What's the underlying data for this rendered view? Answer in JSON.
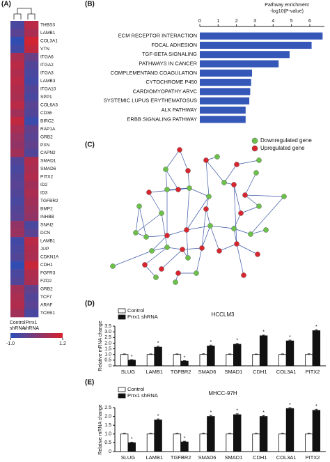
{
  "chart_data": [
    {
      "type": "heatmap",
      "panel": "(A)",
      "rows": [
        "THBS3",
        "LAMB1",
        "COL3A1",
        "VTN",
        "ITGA6",
        "ITGA2",
        "ITGA3",
        "LAMB3",
        "ITGA10",
        "SPP1",
        "COL6A3",
        "CD36",
        "BIRC2",
        "RAP1A",
        "GRB2",
        "PXN",
        "CAPN2",
        "SMAD1",
        "SMAD6",
        "PITX2",
        "ID2",
        "ID3",
        "TGFBR2",
        "BMP2",
        "INHBB",
        "SNAI2",
        "DCN",
        "LAMB1",
        "JUP",
        "CDKN1A",
        "CDH1",
        "FGFR3",
        "FZD2",
        "GRB2",
        "TCF7",
        "ARAF",
        "TCEB1"
      ],
      "columns": [
        "Control shRNA",
        "Prrx1 shRNA"
      ],
      "values": [
        [
          -0.6,
          0.8
        ],
        [
          -0.4,
          0.6
        ],
        [
          -0.9,
          1.1
        ],
        [
          -0.7,
          0.9
        ],
        [
          0.6,
          -0.2
        ],
        [
          0.8,
          -0.5
        ],
        [
          0.7,
          -0.6
        ],
        [
          0.8,
          -0.7
        ],
        [
          0.7,
          -0.5
        ],
        [
          0.6,
          -0.6
        ],
        [
          0.8,
          -0.4
        ],
        [
          0.5,
          -0.5
        ],
        [
          0.9,
          -0.8
        ],
        [
          0.6,
          -0.3
        ],
        [
          0.4,
          -0.4
        ],
        [
          0.3,
          -0.3
        ],
        [
          0.5,
          -0.5
        ],
        [
          -0.5,
          0.7
        ],
        [
          -0.6,
          0.6
        ],
        [
          -0.5,
          0.7
        ],
        [
          -0.4,
          0.5
        ],
        [
          -0.5,
          0.6
        ],
        [
          -0.6,
          0.5
        ],
        [
          -0.5,
          0.4
        ],
        [
          -0.4,
          0.3
        ],
        [
          0.3,
          -0.6
        ],
        [
          0.4,
          -0.4
        ],
        [
          -0.7,
          0.8
        ],
        [
          -0.6,
          0.7
        ],
        [
          -0.5,
          0.6
        ],
        [
          -0.9,
          1.0
        ],
        [
          -0.6,
          0.7
        ],
        [
          -0.5,
          0.6
        ],
        [
          0.5,
          -0.3
        ],
        [
          0.6,
          -0.5
        ],
        [
          0.7,
          -0.4
        ],
        [
          0.5,
          -0.6
        ]
      ],
      "clim": [
        -1.0,
        1.2
      ],
      "cticks": [
        {
          "value": -1.0,
          "label": "-1.0"
        },
        1.2
      ],
      "colors": [
        "#2a4fb8",
        "#d8222c"
      ]
    },
    {
      "type": "hbar",
      "panel": "(B)",
      "xlabel": "Pathway enrichment",
      "xlabel_sub": "-log10(P-value)",
      "categories": [
        "ECM RECEPTOR INTERACTION",
        "FOCAL ADHESION",
        "TGF-BETA SIGNALING",
        "PATHWAYS IN CANCER",
        "COMPLEMENTAND COAGULATION",
        "CYTOCHROME P450",
        "CARDIOMYOPATHY ARVC",
        "SYSTEMIC LUPUS ERYTHEMATOSUS",
        "ALK PATHWAY",
        "ERBB SIGNALING PATHWAY"
      ],
      "values": [
        6.7,
        6.1,
        4.9,
        4.3,
        2.85,
        2.8,
        2.75,
        2.7,
        2.5,
        2.5
      ],
      "color": "#3557b7",
      "xlim": [
        0,
        6.8
      ],
      "xticks": [
        0,
        1,
        2,
        3,
        4,
        5,
        6
      ]
    },
    {
      "type": "network",
      "panel": "(C)",
      "series": [
        {
          "name": "Downregulated gene",
          "color": "#6cc04a"
        },
        {
          "name": "Upregulated gene",
          "color": "#d9262e"
        }
      ]
    },
    {
      "type": "groupbar",
      "panel": "(D)",
      "title": "HCCLM3",
      "ylabel": "Relative mRNA change",
      "categories": [
        "SLUG",
        "LAMB1",
        "TGFBR2",
        "SMAD6",
        "SMAD1",
        "CDH1",
        "COL3A1",
        "PITX2"
      ],
      "series": [
        {
          "name": "Control",
          "color": "#ffffff",
          "values": [
            1,
            1,
            1,
            1,
            1,
            1,
            1,
            1
          ],
          "errors": [
            0.05,
            0.05,
            0.05,
            0.06,
            0.05,
            0.04,
            0.05,
            0.06
          ]
        },
        {
          "name": "Prrx1 shRNA",
          "color": "#111111",
          "values": [
            0.5,
            1.65,
            0.42,
            1.75,
            1.9,
            2.65,
            2.2,
            3.1
          ],
          "errors": [
            0.05,
            0.08,
            0.04,
            0.08,
            0.08,
            0.06,
            0.07,
            0.09
          ],
          "significance": [
            "*",
            "*",
            "*",
            "*",
            "*",
            "*",
            "*",
            "*"
          ]
        }
      ],
      "ylim": [
        0,
        3.5
      ],
      "yticks": [
        0,
        0.5,
        {
          "value": 1,
          "label": "1.0"
        },
        1.5,
        {
          "value": 2,
          "label": "2.0"
        },
        2.5,
        {
          "value": 3,
          "label": "3.0"
        },
        3.5
      ]
    },
    {
      "type": "groupbar",
      "panel": "(E)",
      "title": "MHCC-97H",
      "ylabel": "Relative mRNA change",
      "categories": [
        "SLUG",
        "LAMB1",
        "TGFBR2",
        "SMAD6",
        "SMAD1",
        "CDH1",
        "COL3A1",
        "PITX2"
      ],
      "series": [
        {
          "name": "Control",
          "color": "#ffffff",
          "values": [
            1,
            1,
            1,
            1,
            1,
            1,
            1,
            1
          ],
          "errors": [
            0.04,
            0.04,
            0.04,
            0.05,
            0.04,
            0.04,
            0.04,
            0.05
          ]
        },
        {
          "name": "Prrx1 shRNA",
          "color": "#111111",
          "values": [
            0.5,
            1.8,
            0.55,
            2.0,
            2.1,
            2.0,
            2.45,
            2.35
          ],
          "errors": [
            0.04,
            0.06,
            0.04,
            0.06,
            0.05,
            0.05,
            0.05,
            0.06
          ],
          "significance": [
            "*",
            "*",
            "*",
            "*",
            "*",
            "*",
            "*",
            "*"
          ]
        }
      ],
      "ylim": [
        0,
        2.5
      ],
      "yticks": [
        0,
        0.5,
        {
          "value": 1,
          "label": "1.0"
        },
        1.5,
        {
          "value": 2,
          "label": "2.0"
        },
        2.5
      ]
    }
  ]
}
